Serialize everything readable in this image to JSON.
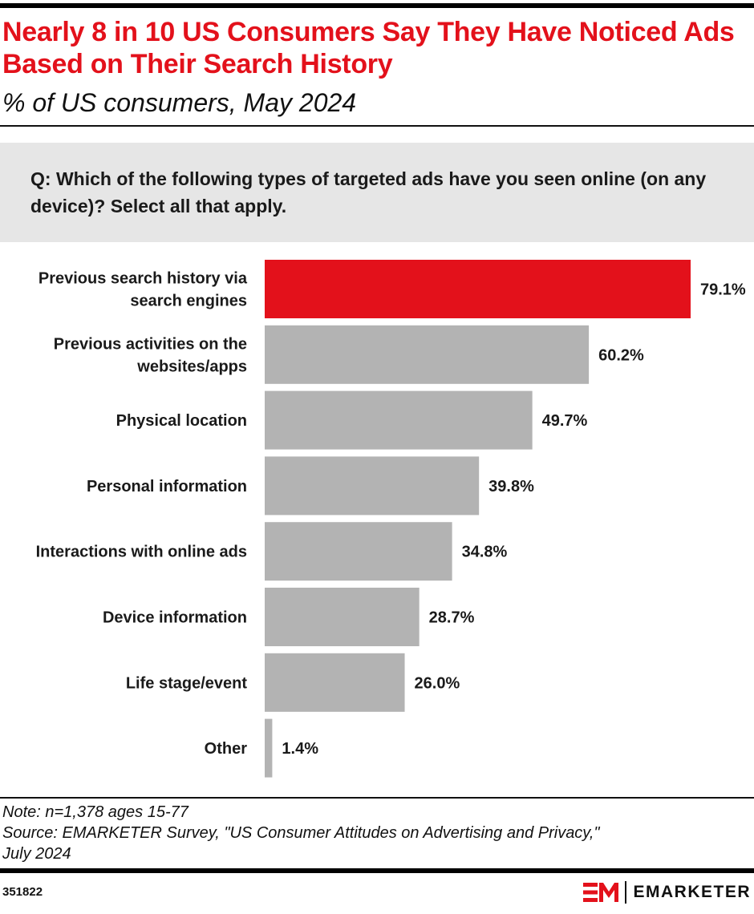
{
  "header": {
    "title": "Nearly 8 in 10 US Consumers Say They Have Noticed Ads Based on Their Search History",
    "subtitle": "% of US consumers, May 2024"
  },
  "question": "Q: Which of the following types of targeted ads have you seen online (on any device)? Select all that apply.",
  "chart_data": {
    "type": "bar",
    "orientation": "horizontal",
    "categories": [
      [
        "Previous search history via",
        "search engines"
      ],
      [
        "Previous activities on the",
        "websites/apps"
      ],
      [
        "Physical location"
      ],
      [
        "Personal information"
      ],
      [
        "Interactions with online ads"
      ],
      [
        "Device information"
      ],
      [
        "Life stage/event"
      ],
      [
        "Other"
      ]
    ],
    "values": [
      79.1,
      60.2,
      49.7,
      39.8,
      34.8,
      28.7,
      26.0,
      1.4
    ],
    "value_labels": [
      "79.1%",
      "60.2%",
      "49.7%",
      "39.8%",
      "34.8%",
      "28.7%",
      "26.0%",
      "1.4%"
    ],
    "highlight_index": 0,
    "colors": {
      "highlight": "#e3111b",
      "default": "#b3b3b3"
    },
    "xlim": [
      0,
      100
    ],
    "grid": false,
    "legend": "none"
  },
  "footer": {
    "note": "Note: n=1,378 ages 15-77",
    "source_line1": "Source: EMARKETER Survey, \"US Consumer Attitudes on Advertising and Privacy,\"",
    "source_line2": "July 2024",
    "chart_id": "351822",
    "brand": "EMARKETER"
  },
  "colors": {
    "accent": "#e3111b",
    "panel": "#e6e6e6",
    "rule": "#000000"
  }
}
